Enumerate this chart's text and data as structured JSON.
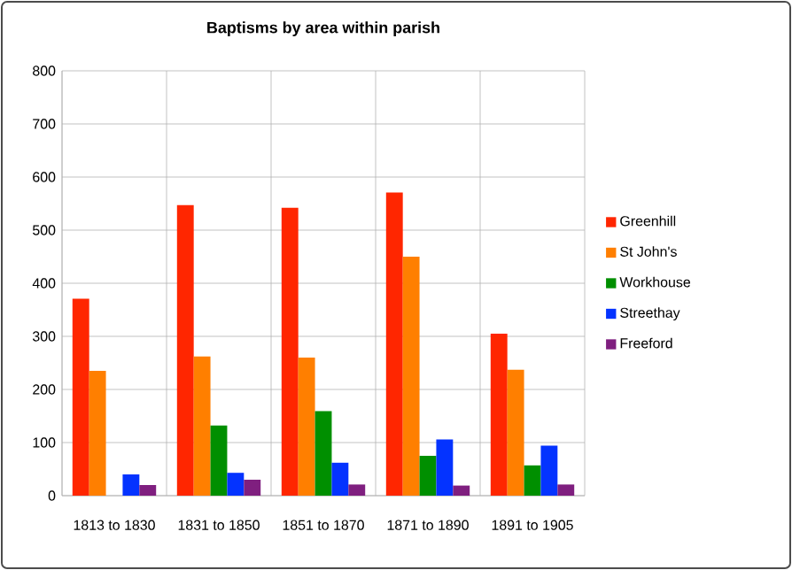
{
  "chart_data": {
    "type": "bar",
    "title": "Baptisms by area within parish",
    "categories": [
      "1813 to 1830",
      "1831 to 1850",
      "1851 to 1870",
      "1871 to 1890",
      "1891 to 1905"
    ],
    "series": [
      {
        "name": "Greenhill",
        "color": "#ff2600",
        "values": [
          371,
          547,
          542,
          571,
          305
        ]
      },
      {
        "name": "St John's",
        "color": "#ff7f00",
        "values": [
          235,
          262,
          260,
          450,
          237
        ]
      },
      {
        "name": "Workhouse",
        "color": "#008f00",
        "values": [
          0,
          132,
          159,
          75,
          57
        ]
      },
      {
        "name": "Streethay",
        "color": "#0433ff",
        "values": [
          40,
          43,
          62,
          106,
          94
        ]
      },
      {
        "name": "Freeford",
        "color": "#7f1f7f",
        "values": [
          20,
          30,
          21,
          19,
          21
        ]
      }
    ],
    "ylim": [
      0,
      800
    ],
    "yticks": [
      0,
      100,
      200,
      300,
      400,
      500,
      600,
      700,
      800
    ],
    "grid": true,
    "legend": "right"
  }
}
